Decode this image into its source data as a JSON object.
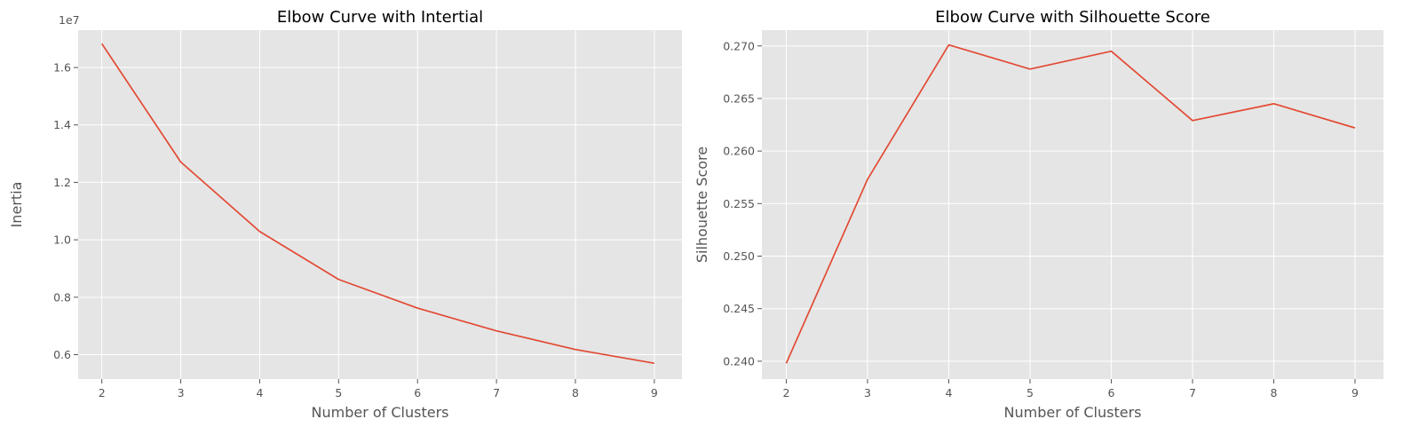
{
  "chart_data": [
    {
      "type": "line",
      "title": "Elbow Curve with Intertial",
      "xlabel": "Number of Clusters",
      "ylabel": "Inertia",
      "y_offset_label": "1e7",
      "x": [
        2,
        3,
        4,
        5,
        6,
        7,
        8,
        9
      ],
      "x_ticks": [
        "2",
        "3",
        "4",
        "5",
        "6",
        "7",
        "8",
        "9"
      ],
      "xlim": [
        1.7,
        9.35
      ],
      "ylim": [
        5150000,
        17300000
      ],
      "y_ticks": [
        6000000,
        8000000,
        10000000,
        12000000,
        14000000,
        16000000
      ],
      "y_tick_labels": [
        "0.6",
        "0.8",
        "1.0",
        "1.2",
        "1.4",
        "1.6"
      ],
      "grid": true,
      "series": [
        {
          "values": [
            16830000,
            12710000,
            10290000,
            8620000,
            7620000,
            6830000,
            6180000,
            5700000
          ],
          "color": "#e24a33"
        }
      ]
    },
    {
      "type": "line",
      "title": "Elbow Curve with Silhouette Score",
      "xlabel": "Number of Clusters",
      "ylabel": "Silhouette Score",
      "x": [
        2,
        3,
        4,
        5,
        6,
        7,
        8,
        9
      ],
      "x_ticks": [
        "2",
        "3",
        "4",
        "5",
        "6",
        "7",
        "8",
        "9"
      ],
      "xlim": [
        1.7,
        9.35
      ],
      "ylim": [
        0.2383,
        0.2715
      ],
      "y_ticks": [
        0.24,
        0.245,
        0.25,
        0.255,
        0.26,
        0.265,
        0.27
      ],
      "y_tick_labels": [
        "0.240",
        "0.245",
        "0.250",
        "0.255",
        "0.260",
        "0.265",
        "0.270"
      ],
      "grid": true,
      "series": [
        {
          "values": [
            0.2398,
            0.2573,
            0.2701,
            0.2678,
            0.2695,
            0.2629,
            0.2645,
            0.2622
          ],
          "color": "#e24a33"
        }
      ]
    }
  ]
}
